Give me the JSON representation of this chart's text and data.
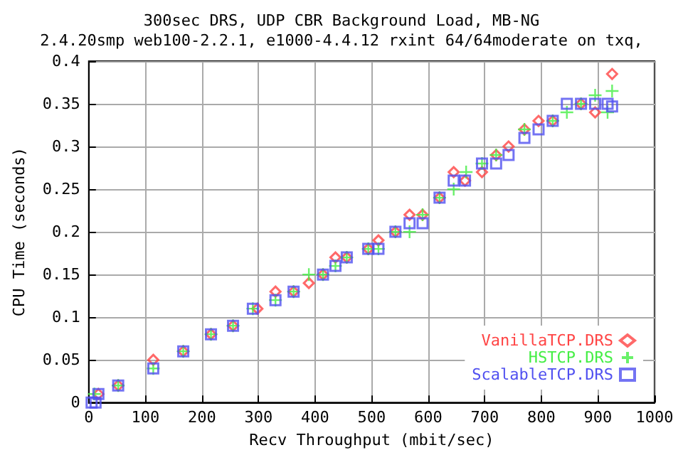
{
  "chart_data": {
    "type": "scatter",
    "title": "300sec DRS, UDP CBR Background Load, MB-NG",
    "subtitle": "2.4.20smp web100-2.2.1, e1000-4.4.12 rxint 64/64moderate on txq,",
    "xlabel": "Recv Throughput (mbit/sec)",
    "ylabel": "CPU Time (seconds)",
    "xlim": [
      0,
      1000
    ],
    "xticks": [
      0,
      100,
      200,
      300,
      400,
      500,
      600,
      700,
      800,
      900,
      1000
    ],
    "ylim": [
      0,
      0.4
    ],
    "yticks": [
      0,
      0.05,
      0.1,
      0.15,
      0.2,
      0.25,
      0.3,
      0.35,
      0.4
    ],
    "grid": true,
    "legend": "bottom right",
    "series": [
      {
        "name": "VanillaTCP.DRS",
        "color": "#ff4444",
        "marker": "diamond",
        "x": [
          17,
          52,
          114,
          167,
          216,
          255,
          298,
          330,
          362,
          389,
          414,
          436,
          456,
          494,
          512,
          542,
          567,
          590,
          620,
          645,
          665,
          695,
          720,
          742,
          770,
          795,
          820,
          870,
          895,
          925
        ],
        "values": [
          0.01,
          0.02,
          0.05,
          0.06,
          0.08,
          0.09,
          0.11,
          0.13,
          0.13,
          0.14,
          0.15,
          0.17,
          0.17,
          0.18,
          0.19,
          0.2,
          0.22,
          0.22,
          0.24,
          0.27,
          0.26,
          0.27,
          0.29,
          0.3,
          0.32,
          0.33,
          0.33,
          0.35,
          0.34,
          0.385
        ]
      },
      {
        "name": "HSTCP.DRS",
        "color": "#44ee44",
        "marker": "cross",
        "x": [
          10,
          52,
          114,
          167,
          216,
          255,
          290,
          330,
          362,
          389,
          414,
          436,
          456,
          494,
          512,
          542,
          567,
          590,
          620,
          645,
          667,
          695,
          720,
          770,
          820,
          845,
          870,
          895,
          917,
          925
        ],
        "values": [
          0.01,
          0.02,
          0.04,
          0.06,
          0.08,
          0.09,
          0.11,
          0.12,
          0.13,
          0.15,
          0.15,
          0.16,
          0.17,
          0.18,
          0.18,
          0.2,
          0.2,
          0.22,
          0.24,
          0.25,
          0.27,
          0.28,
          0.29,
          0.32,
          0.33,
          0.34,
          0.35,
          0.36,
          0.34,
          0.365
        ]
      },
      {
        "name": "ScalableTCP.DRS",
        "color": "#5050f0",
        "marker": "square",
        "x": [
          5,
          12,
          17,
          52,
          114,
          167,
          216,
          255,
          290,
          330,
          362,
          414,
          436,
          456,
          494,
          512,
          542,
          567,
          590,
          620,
          645,
          665,
          695,
          720,
          742,
          770,
          795,
          820,
          845,
          870,
          895,
          917,
          925
        ],
        "values": [
          0,
          0,
          0.01,
          0.02,
          0.04,
          0.06,
          0.08,
          0.09,
          0.11,
          0.12,
          0.13,
          0.15,
          0.16,
          0.17,
          0.18,
          0.18,
          0.2,
          0.21,
          0.21,
          0.24,
          0.26,
          0.26,
          0.28,
          0.28,
          0.29,
          0.31,
          0.32,
          0.33,
          0.35,
          0.35,
          0.35,
          0.35,
          0.347
        ]
      }
    ]
  }
}
